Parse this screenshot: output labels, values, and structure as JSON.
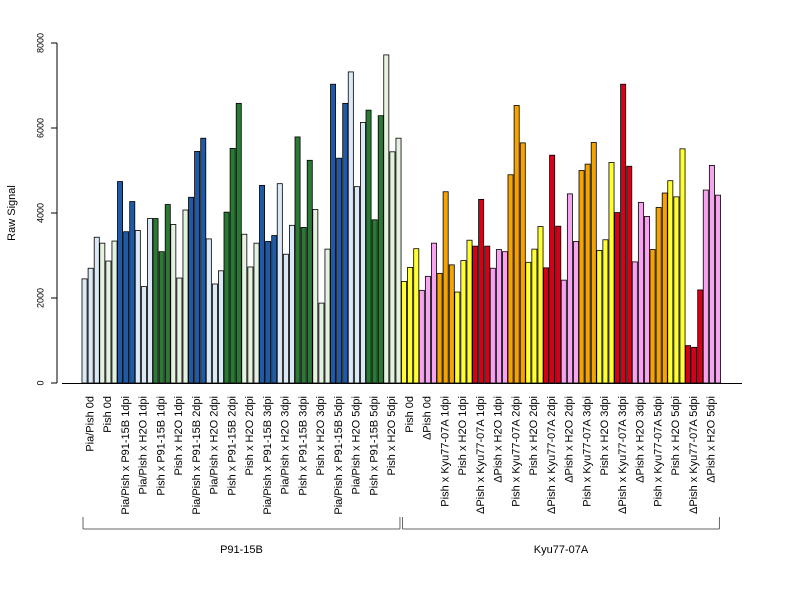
{
  "chart_data": {
    "type": "bar",
    "title": "",
    "xlabel": "",
    "ylabel": "Raw Signal",
    "ylim": [
      0,
      8000
    ],
    "yticks": [
      0,
      2000,
      4000,
      6000,
      8000
    ],
    "grid": false,
    "legend": "none",
    "categories": [
      {
        "label": "Pia/Pish 0d",
        "color": "#dbe8f6",
        "values": [
          2450,
          2700,
          3430
        ]
      },
      {
        "label": "Pish 0d",
        "color": "#e5f2df",
        "values": [
          3290,
          2870,
          3340
        ]
      },
      {
        "label": "Pia/Pish x P91-15B 1dpi",
        "color": "#1f5aa6",
        "values": [
          4740,
          3560,
          4270
        ]
      },
      {
        "label": "Pia/Pish x H2O 1dpi",
        "color": "#dbe8f6",
        "values": [
          3590,
          2270,
          3870
        ]
      },
      {
        "label": "Pish x P91-15B 1dpi",
        "color": "#2a7a35",
        "values": [
          3870,
          3090,
          4200
        ]
      },
      {
        "label": "Pish x H2O 1dpi",
        "color": "#e5f2df",
        "values": [
          3730,
          2470,
          4070
        ]
      },
      {
        "label": "Pia/Pish x P91-15B 2dpi",
        "color": "#1f5aa6",
        "values": [
          4370,
          5450,
          5760
        ]
      },
      {
        "label": "Pia/Pish x H2O 2dpi",
        "color": "#dbe8f6",
        "values": [
          3390,
          2330,
          2640
        ]
      },
      {
        "label": "Pish x P91-15B 2dpi",
        "color": "#2a7a35",
        "values": [
          4020,
          5520,
          6580
        ]
      },
      {
        "label": "Pish x H2O 2dpi",
        "color": "#e5f2df",
        "values": [
          3500,
          2730,
          3290
        ]
      },
      {
        "label": "Pia/Pish x P91-15B 3dpi",
        "color": "#1f5aa6",
        "values": [
          4650,
          3330,
          3470
        ]
      },
      {
        "label": "Pia/Pish x H2O 3dpi",
        "color": "#dbe8f6",
        "values": [
          4690,
          3030,
          3710
        ]
      },
      {
        "label": "Pish x P91-15B 3dpi",
        "color": "#2a7a35",
        "values": [
          5790,
          3660,
          5240
        ]
      },
      {
        "label": "Pish x H2O 3dpi",
        "color": "#e5f2df",
        "values": [
          4080,
          1880,
          3150
        ]
      },
      {
        "label": "Pia/Pish x P91-15B 5dpi",
        "color": "#1f5aa6",
        "values": [
          7030,
          5290,
          6580
        ]
      },
      {
        "label": "Pia/Pish x H2O 5dpi",
        "color": "#dbe8f6",
        "values": [
          7320,
          4620,
          6130
        ]
      },
      {
        "label": "Pish x P91-15B 5dpi",
        "color": "#2a7a35",
        "values": [
          6420,
          3840,
          6290
        ]
      },
      {
        "label": "Pish x H2O 5dpi",
        "color": "#e5f2df",
        "values": [
          7720,
          5440,
          5760
        ]
      },
      {
        "label": "Pish 0d",
        "color": "#ffff33",
        "values": [
          2390,
          2720,
          3160
        ]
      },
      {
        "label": "ΔPish 0d",
        "color": "#f7a3f0",
        "values": [
          2180,
          2510,
          3290
        ]
      },
      {
        "label": "Pish x Kyu77-07A 1dpi",
        "color": "#f5a300",
        "values": [
          2580,
          4500,
          2780
        ]
      },
      {
        "label": "Pish x H2O 1dpi",
        "color": "#ffff33",
        "values": [
          2140,
          2880,
          3360
        ]
      },
      {
        "label": "ΔPish x Kyu77-07A 1dpi",
        "color": "#d4001a",
        "values": [
          3220,
          4320,
          3220
        ]
      },
      {
        "label": "ΔPish x H2O 1dpi",
        "color": "#f7a3f0",
        "values": [
          2700,
          3140,
          3090
        ]
      },
      {
        "label": "Pish x Kyu77-07A 2dpi",
        "color": "#f5a300",
        "values": [
          4900,
          6530,
          5650
        ]
      },
      {
        "label": "Pish x H2O 2dpi",
        "color": "#ffff33",
        "values": [
          2840,
          3150,
          3680
        ]
      },
      {
        "label": "ΔPish x Kyu77-07A 2dpi",
        "color": "#d4001a",
        "values": [
          2710,
          5360,
          3690
        ]
      },
      {
        "label": "ΔPish x H2O 2dpi",
        "color": "#f7a3f0",
        "values": [
          2420,
          4450,
          3330
        ]
      },
      {
        "label": "Pish x Kyu77-07A 3dpi",
        "color": "#f5a300",
        "values": [
          5000,
          5150,
          5660
        ]
      },
      {
        "label": "Pish x H2O 3dpi",
        "color": "#ffff33",
        "values": [
          3120,
          3370,
          5190
        ]
      },
      {
        "label": "ΔPish x Kyu77-07A 3dpi",
        "color": "#d4001a",
        "values": [
          4010,
          7030,
          5100
        ]
      },
      {
        "label": "ΔPish x H2O 3dpi",
        "color": "#f7a3f0",
        "values": [
          2850,
          4250,
          3920
        ]
      },
      {
        "label": "Pish x Kyu77-07A 5dpi",
        "color": "#f5a300",
        "values": [
          3140,
          4130,
          4470
        ]
      },
      {
        "label": "Pish x H2O 5dpi",
        "color": "#ffff33",
        "values": [
          4760,
          4380,
          5510
        ]
      },
      {
        "label": "ΔPish x Kyu77-07A 5dpi",
        "color": "#d4001a",
        "values": [
          880,
          840,
          2190
        ]
      },
      {
        "label": "ΔPish x H2O 5dpi",
        "color": "#f7a3f0",
        "values": [
          4540,
          5120,
          4420
        ]
      }
    ],
    "groups": [
      {
        "label": "P91-15B",
        "from": 0,
        "to": 17
      },
      {
        "label": "Kyu77-07A",
        "from": 18,
        "to": 35
      }
    ]
  }
}
